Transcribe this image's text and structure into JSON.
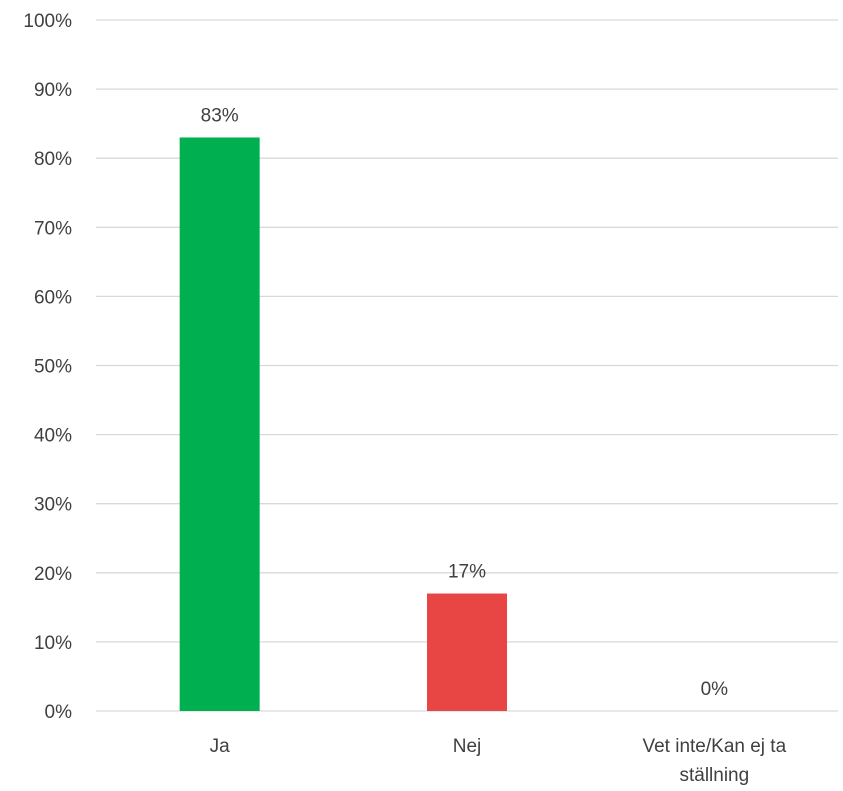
{
  "chart_data": {
    "type": "bar",
    "categories": [
      "Ja",
      "Nej",
      "Vet inte/Kan ej ta ställning"
    ],
    "category_label_lines": [
      [
        "Ja"
      ],
      [
        "Nej"
      ],
      [
        "Vet inte/Kan ej ta",
        "ställning"
      ]
    ],
    "values": [
      83,
      17,
      0
    ],
    "data_labels": [
      "83%",
      "17%",
      "0%"
    ],
    "bar_colors": [
      "#00b050",
      "#e84545",
      "#e84545"
    ],
    "ylim": [
      0,
      100
    ],
    "yticks": [
      0,
      10,
      20,
      30,
      40,
      50,
      60,
      70,
      80,
      90,
      100
    ],
    "ytick_labels": [
      "0%",
      "10%",
      "20%",
      "30%",
      "40%",
      "50%",
      "60%",
      "70%",
      "80%",
      "90%",
      "100%"
    ],
    "grid": true,
    "legend": "none",
    "title": "",
    "xlabel": "",
    "ylabel": ""
  }
}
